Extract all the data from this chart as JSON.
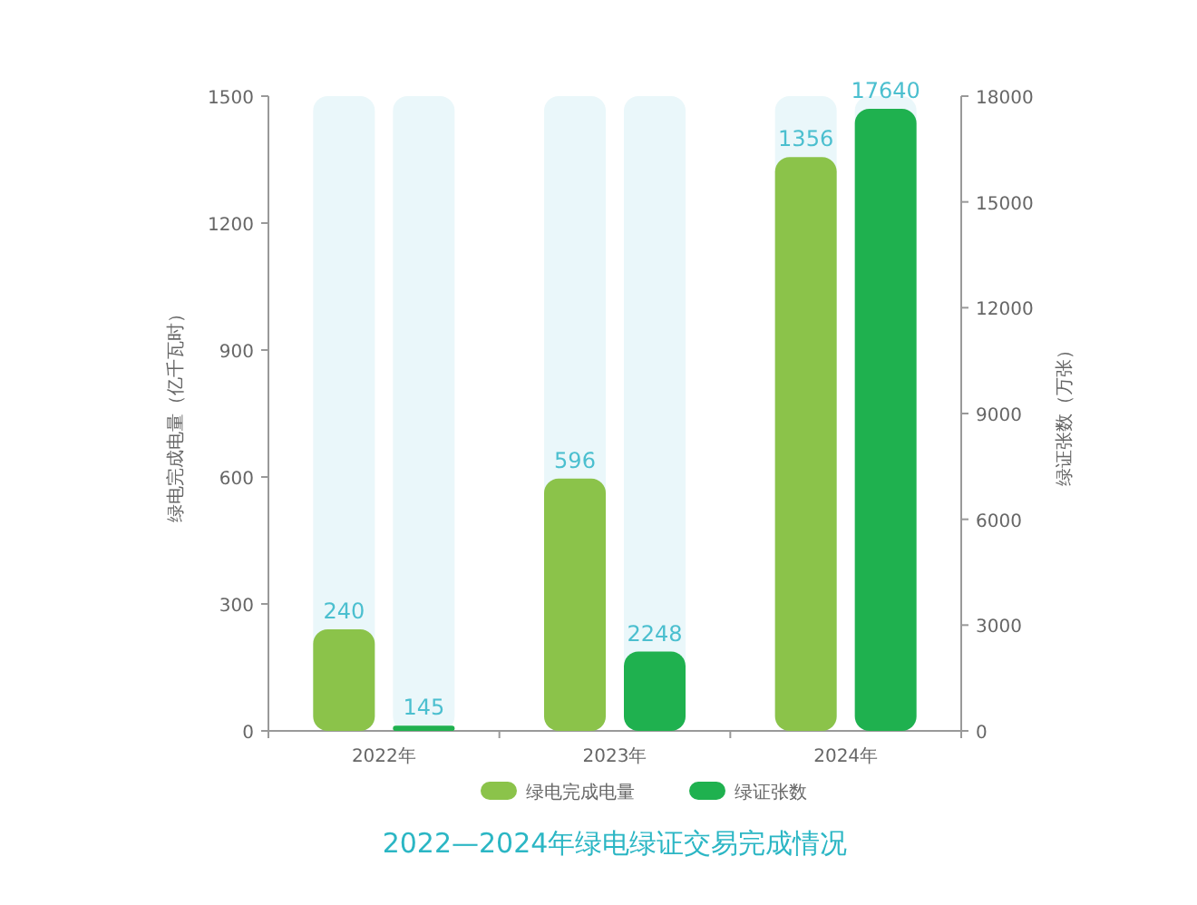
{
  "chart_data": {
    "type": "bar",
    "title": "2022—2024年绿电绿证交易完成情况",
    "ylabel": "绿电完成电量（亿千瓦时）",
    "y2label": "绿证张数（万张）",
    "categories": [
      "2022年",
      "2023年",
      "2024年"
    ],
    "series": [
      {
        "name": "绿电完成电量",
        "color": "#8bc34a",
        "values": [
          240,
          596,
          1356
        ]
      },
      {
        "name": "绿证张数",
        "color": "#1fb14f",
        "values": [
          145,
          2248,
          17640
        ],
        "axis": "y2"
      }
    ],
    "ylim": [
      0,
      1500
    ],
    "yticks": [
      0,
      300,
      600,
      900,
      1200,
      1500
    ],
    "y2lim": [
      0,
      18000
    ],
    "y2ticks": [
      0,
      3000,
      6000,
      9000,
      12000,
      15000,
      18000
    ],
    "data_labels": true,
    "legend": "bottom",
    "grid": false
  }
}
